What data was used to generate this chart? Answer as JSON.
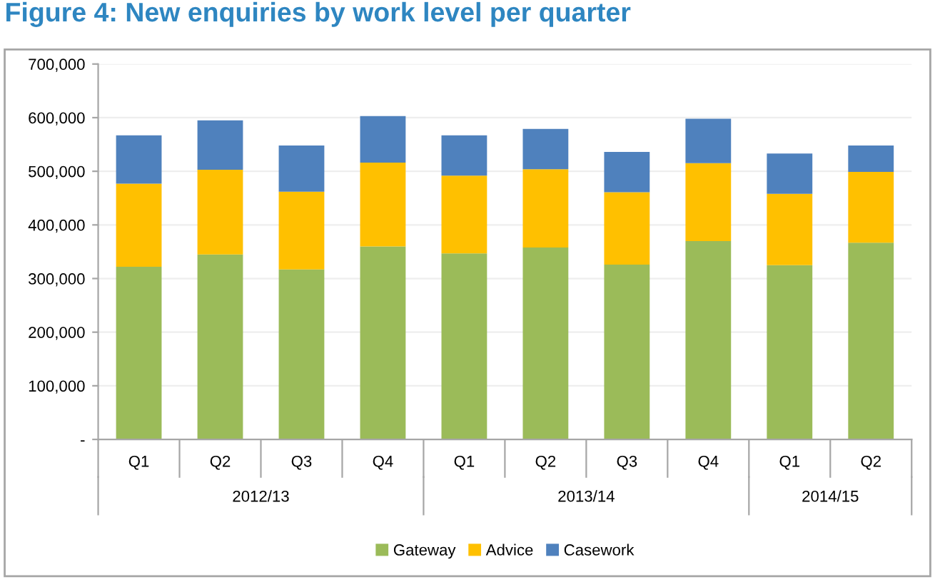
{
  "chart_data": {
    "type": "bar",
    "stacked": true,
    "title": "Figure 4: New enquiries by work level per quarter",
    "categories": [
      "Q1",
      "Q2",
      "Q3",
      "Q4",
      "Q1",
      "Q2",
      "Q3",
      "Q4",
      "Q1",
      "Q2"
    ],
    "annotations": [
      "2012/13",
      "2013/14",
      "2014/15"
    ],
    "series": [
      {
        "name": "Gateway",
        "color": "#9bbb59",
        "values": [
          322000,
          345000,
          317000,
          360000,
          347000,
          358000,
          326000,
          370000,
          325000,
          367000
        ]
      },
      {
        "name": "Advice",
        "color": "#ffc000",
        "values": [
          155000,
          158000,
          145000,
          156000,
          145000,
          146000,
          135000,
          145000,
          133000,
          132000
        ]
      },
      {
        "name": "Casework",
        "color": "#4f81bd",
        "values": [
          90000,
          92000,
          86000,
          87000,
          75000,
          75000,
          75000,
          83000,
          75000,
          49000
        ]
      }
    ],
    "ylim": [
      0,
      700000
    ],
    "yticks": [
      {
        "value": 0,
        "label": "-"
      },
      {
        "value": 100000,
        "label": "100,000"
      },
      {
        "value": 200000,
        "label": "200,000"
      },
      {
        "value": 300000,
        "label": "300,000"
      },
      {
        "value": 400000,
        "label": "400,000"
      },
      {
        "value": 500000,
        "label": "500,000"
      },
      {
        "value": 600000,
        "label": "600,000"
      },
      {
        "value": 700000,
        "label": "700,000"
      }
    ],
    "grid": "y",
    "legend": "bottom"
  }
}
